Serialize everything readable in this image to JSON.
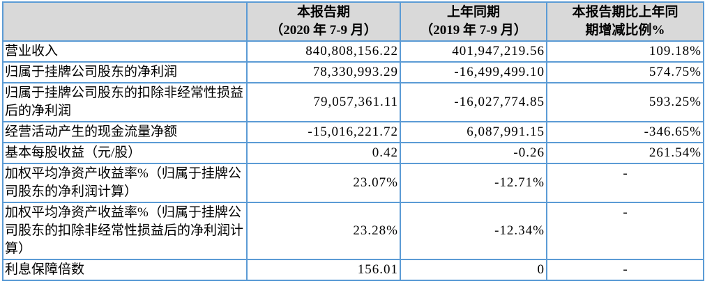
{
  "table": {
    "colors": {
      "border": "#5b9bd5",
      "header_bg": "#d9d9d9",
      "text": "#000000"
    },
    "columns": [
      {
        "label": ""
      },
      {
        "label": "本报告期\n（2020 年 7-9 月）"
      },
      {
        "label": "上年同期\n（2019 年 7-9 月）"
      },
      {
        "label": "本报告期比上年同\n期增减比例%"
      }
    ],
    "rows": [
      {
        "label": "营业收入",
        "current": "840,808,156.22",
        "prior": "401,947,219.56",
        "change": "109.18%"
      },
      {
        "label": "归属于挂牌公司股东的净利润",
        "current": "78,330,993.29",
        "prior": "-16,499,499.10",
        "change": "574.75%"
      },
      {
        "label": "归属于挂牌公司股东的扣除非经常性损益后的净利润",
        "current": "79,057,361.11",
        "prior": "-16,027,774.85",
        "change": "593.25%"
      },
      {
        "label": "经营活动产生的现金流量净额",
        "current": "-15,016,221.72",
        "prior": "6,087,991.15",
        "change": "-346.65%"
      },
      {
        "label": "基本每股收益（元/股）",
        "current": "0.42",
        "prior": "-0.26",
        "change": "261.54%"
      },
      {
        "label": "加权平均净资产收益率%（归属于挂牌公司股东的净利润计算）",
        "current": "23.07%",
        "prior": "-12.71%",
        "change": "-"
      },
      {
        "label": "加权平均净资产收益率%（归属于挂牌公司股东的扣除非经常性损益后的净利润计算）",
        "current": "23.28%",
        "prior": "-12.34%",
        "change": "-"
      },
      {
        "label": "利息保障倍数",
        "current": "156.01",
        "prior": "0",
        "change": "-"
      }
    ]
  }
}
